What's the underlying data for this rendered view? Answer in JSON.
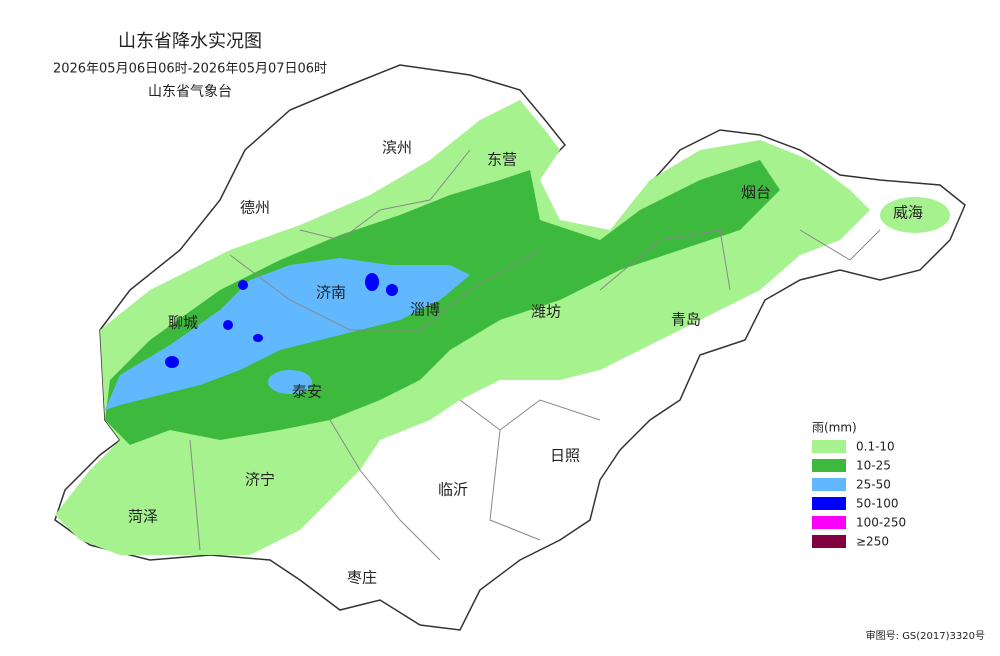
{
  "header": {
    "title": "山东省降水实况图",
    "period": "2026年05月06日06时-2026年05月07日06时",
    "issuer": "山东省气象台"
  },
  "cities": [
    "滨州",
    "东营",
    "德州",
    "烟台",
    "威海",
    "济南",
    "淄博",
    "潍坊",
    "青岛",
    "聊城",
    "泰安",
    "日照",
    "济宁",
    "临沂",
    "菏泽",
    "枣庄"
  ],
  "legend": {
    "title": "雨(mm)",
    "items": [
      {
        "label": "0.1-10",
        "color": "#a6f28f"
      },
      {
        "label": "10-25",
        "color": "#3dba3d"
      },
      {
        "label": "25-50",
        "color": "#61b8ff"
      },
      {
        "label": "50-100",
        "color": "#0000fe"
      },
      {
        "label": "100-250",
        "color": "#fa00fa"
      },
      {
        "label": "≥250",
        "color": "#800040"
      }
    ]
  },
  "footer": {
    "review_number": "审图号: GS(2017)3320号"
  }
}
